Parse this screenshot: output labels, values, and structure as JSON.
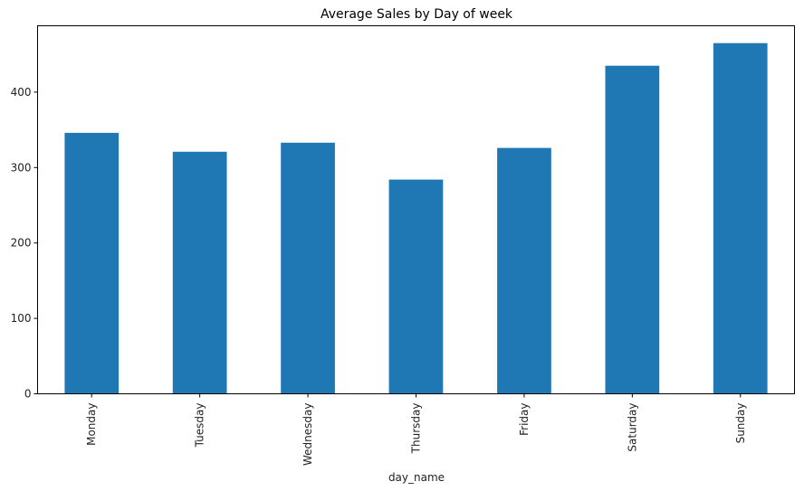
{
  "chart_data": {
    "type": "bar",
    "title": "Average Sales by Day of week",
    "xlabel": "day_name",
    "ylabel": "",
    "categories": [
      "Monday",
      "Tuesday",
      "Wednesday",
      "Thursday",
      "Friday",
      "Saturday",
      "Sunday"
    ],
    "values": [
      346,
      321,
      333,
      284,
      326,
      435,
      465
    ],
    "ylim": [
      0,
      488
    ],
    "yticks": [
      0,
      100,
      200,
      300,
      400
    ],
    "grid": false,
    "bar_color": "#1f77b4"
  }
}
